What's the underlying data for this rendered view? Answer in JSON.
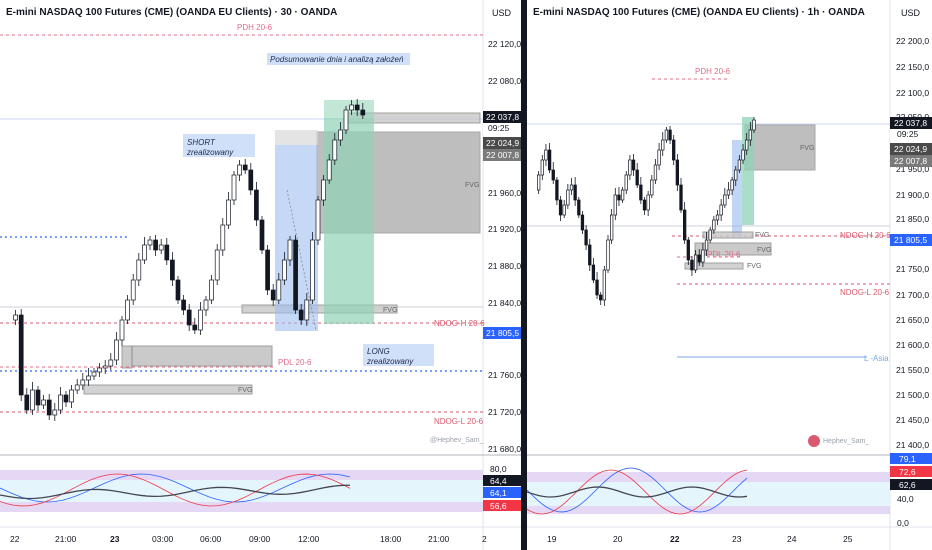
{
  "left": {
    "title": "E-mini NASDAQ 100 Futures (CME) (OANDA EU Clients) · 30 · OANDA",
    "currency": "USD",
    "price_ticks": [
      "22 120,0",
      "22 080,0",
      "21 960,0",
      "21 920,0",
      "21 880,0",
      "21 840,0",
      "21 760,0",
      "21 720,0",
      "21 680,0"
    ],
    "price_tags": {
      "current": "22 037,8",
      "timer": "09:25",
      "tag2": "22 024,9",
      "tag3": "22 007,8",
      "ndog_tag": "21 805,5"
    },
    "labels": {
      "pdh": "PDH 20-6",
      "pdl": "PDL 20-6",
      "ndog_h": "NDOG-H  20-6",
      "ndog_l": "NDOG-L  20-6",
      "fvg": "FVG",
      "watermark": "@Hephev_Sam_"
    },
    "notes": {
      "summary": "Podsumowanie dnia i  analizą założeń",
      "short_1": "SHORT",
      "short_2": "zrealizowany",
      "long_1": "LONG",
      "long_2": "zrealizowany"
    },
    "osc_ticks": [
      "80,0"
    ],
    "osc_tags": [
      "64,4",
      "64,1",
      "56,6"
    ],
    "time_ticks": [
      "22",
      "21:00",
      "23",
      "03:00",
      "06:00",
      "09:00",
      "12:00",
      "18:00",
      "21:00",
      "2"
    ]
  },
  "right": {
    "title": "E-mini NASDAQ 100 Futures (CME) (OANDA EU Clients) · 1h · OANDA",
    "currency": "USD",
    "price_ticks": [
      "22 200,0",
      "22 150,0",
      "22 100,0",
      "22 050,0",
      "21 950,0",
      "21 900,0",
      "21 850,0",
      "21 750,0",
      "21 700,0",
      "21 650,0",
      "21 600,0",
      "21 550,0",
      "21 500,0",
      "21 450,0",
      "21 400,0"
    ],
    "price_tags": {
      "current": "22 037,8",
      "timer": "09:25",
      "tag2": "22 024,9",
      "tag3": "22 007,8",
      "ndog_tag": "21 805,5"
    },
    "labels": {
      "pdh": "PDH 20-6",
      "pdl": "PDL 20-6",
      "ndog_h": "NDOG-H  20-6",
      "ndog_l": "NDOG-L  20-6",
      "asia": "L -Asia",
      "fvg": "FVG",
      "watermark": "Hephev_Sam_"
    },
    "osc_ticks": [
      "40,0",
      "0,0"
    ],
    "osc_tags": [
      "79,1",
      "72,6",
      "62,6"
    ],
    "time_ticks": [
      "19",
      "20",
      "22",
      "23",
      "24",
      "25"
    ]
  },
  "colors": {
    "up": "#ffffff",
    "down": "#131722",
    "short_zone": "#9fbff2",
    "long_zone": "#8fd3b6",
    "fvg": "#a9a9a9",
    "pdh": "#e06c88",
    "ndog": "#d9596f",
    "tag_dark": "#131722",
    "tag_blue": "#2962ff",
    "tag_red": "#f23645",
    "asia": "#7aa7e8"
  }
}
